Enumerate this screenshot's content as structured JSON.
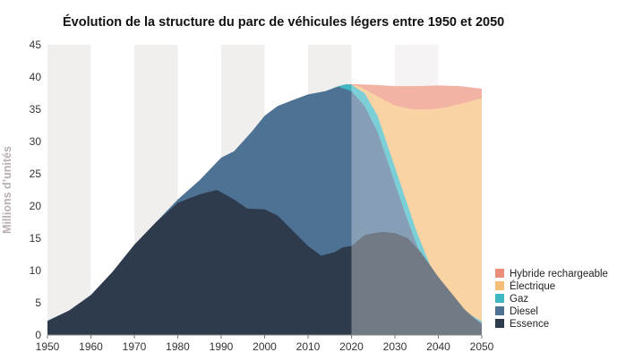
{
  "chart_data": {
    "type": "area",
    "title": "Évolution de la structure du parc de véhicules légers entre 1950 et 2050",
    "xlabel": "",
    "ylabel": "Millions d’unités",
    "xlim": [
      1950,
      2050
    ],
    "ylim": [
      0,
      45
    ],
    "x_ticks": [
      "1950",
      "1960",
      "1970",
      "1980",
      "1990",
      "2000",
      "2010",
      "2020",
      "2030",
      "2040",
      "2050"
    ],
    "y_ticks": [
      "0",
      "5",
      "10",
      "15",
      "20",
      "25",
      "30",
      "35",
      "40",
      "45"
    ],
    "projection_start": 2020,
    "grid": "alternating vertical decade bands",
    "legend_position": "right",
    "series": [
      {
        "name": "Essence",
        "color": "#2e3b4c",
        "points": [
          [
            1950,
            2.2
          ],
          [
            1955,
            3.8
          ],
          [
            1960,
            6.2
          ],
          [
            1965,
            9.8
          ],
          [
            1970,
            14
          ],
          [
            1975,
            17.5
          ],
          [
            1980,
            20.5
          ],
          [
            1985,
            21.8
          ],
          [
            1989,
            22.5
          ],
          [
            1993,
            21
          ],
          [
            1996,
            19.6
          ],
          [
            2000,
            19.5
          ],
          [
            2003,
            18.5
          ],
          [
            2006,
            16.5
          ],
          [
            2010,
            13.8
          ],
          [
            2013,
            12.3
          ],
          [
            2016,
            12.8
          ],
          [
            2018,
            13.6
          ],
          [
            2020,
            13.8
          ],
          [
            2023,
            15.5
          ],
          [
            2027,
            16
          ],
          [
            2030,
            15.8
          ],
          [
            2033,
            15
          ],
          [
            2036,
            12.8
          ],
          [
            2040,
            9
          ],
          [
            2043,
            6.5
          ],
          [
            2046,
            4
          ],
          [
            2050,
            1.6
          ]
        ]
      },
      {
        "name": "Diesel",
        "color": "#4e7294",
        "points": [
          [
            1950,
            2.2
          ],
          [
            1955,
            3.8
          ],
          [
            1960,
            6.2
          ],
          [
            1965,
            9.8
          ],
          [
            1970,
            14
          ],
          [
            1975,
            17.5
          ],
          [
            1980,
            21
          ],
          [
            1985,
            24
          ],
          [
            1990,
            27.5
          ],
          [
            1993,
            28.5
          ],
          [
            1997,
            31.5
          ],
          [
            2000,
            34
          ],
          [
            2003,
            35.5
          ],
          [
            2006,
            36.3
          ],
          [
            2010,
            37.3
          ],
          [
            2014,
            37.8
          ],
          [
            2017,
            38.5
          ],
          [
            2020,
            37.8
          ],
          [
            2023,
            35.5
          ],
          [
            2026,
            31.5
          ],
          [
            2029,
            25.5
          ],
          [
            2032,
            19.5
          ],
          [
            2035,
            14
          ],
          [
            2038,
            9.5
          ],
          [
            2041,
            6.5
          ],
          [
            2044,
            4.5
          ],
          [
            2047,
            3
          ],
          [
            2050,
            1.9
          ]
        ]
      },
      {
        "name": "Gaz",
        "color": "#3fb8c4",
        "points": [
          [
            2014,
            37.8
          ],
          [
            2017,
            38.6
          ],
          [
            2019,
            38.9
          ],
          [
            2020,
            38.8
          ],
          [
            2023,
            37.5
          ],
          [
            2026,
            34
          ],
          [
            2029,
            28
          ],
          [
            2032,
            22
          ],
          [
            2035,
            16
          ],
          [
            2038,
            11
          ],
          [
            2041,
            7.5
          ],
          [
            2044,
            5
          ],
          [
            2047,
            3.3
          ],
          [
            2050,
            2.1
          ]
        ]
      },
      {
        "name": "Électrique",
        "color": "#f6bf78",
        "points": [
          [
            2016,
            38.4
          ],
          [
            2019,
            38.9
          ],
          [
            2022,
            38.5
          ],
          [
            2026,
            37
          ],
          [
            2030,
            35.6
          ],
          [
            2034,
            35
          ],
          [
            2038,
            35
          ],
          [
            2042,
            35.3
          ],
          [
            2046,
            36
          ],
          [
            2050,
            36.7
          ]
        ]
      },
      {
        "name": "Hybride rechargeable",
        "color": "#ec8e7a",
        "points": [
          [
            2018,
            38.8
          ],
          [
            2020,
            38.9
          ],
          [
            2025,
            38.8
          ],
          [
            2030,
            38.6
          ],
          [
            2035,
            38.6
          ],
          [
            2040,
            38.7
          ],
          [
            2045,
            38.6
          ],
          [
            2050,
            38.2
          ]
        ]
      }
    ]
  }
}
